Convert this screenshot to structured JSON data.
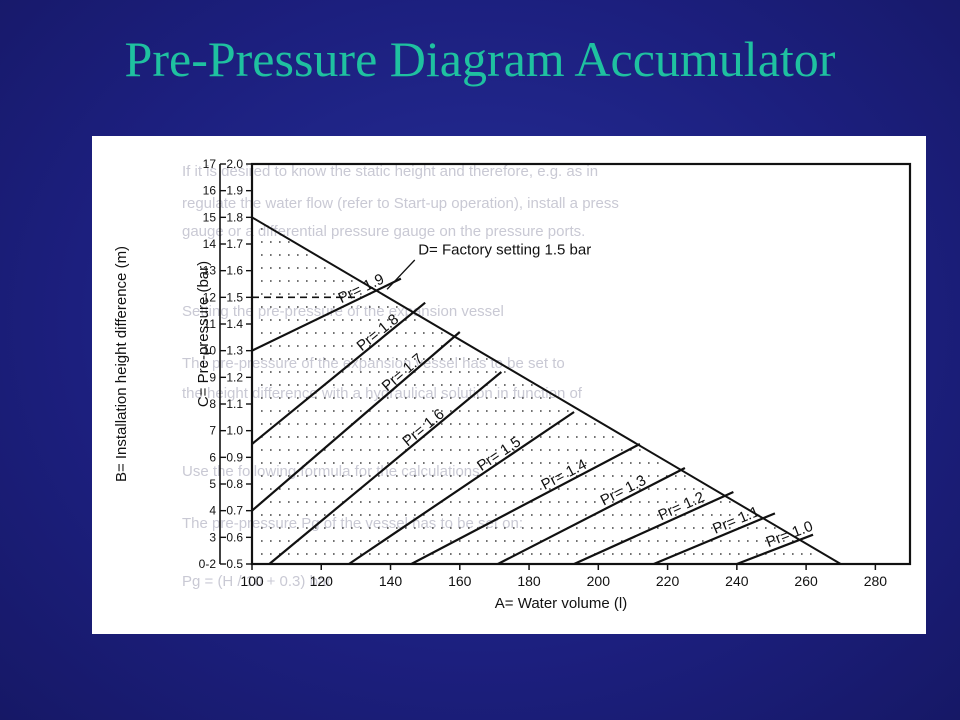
{
  "title": "Pre-Pressure Diagram Accumulator",
  "colors": {
    "background": "#1c1f7e",
    "title": "#1fc1a0",
    "panel": "#ffffff",
    "ink": "#111111"
  },
  "chart_data": {
    "type": "line",
    "xlabel": "A= Water volume (l)",
    "ylabel_left": "B= Installation height difference (m)",
    "ylabel_right": "C= Pre-pressure (bar)",
    "x_ticks": [
      "100",
      "120",
      "140",
      "160",
      "180",
      "200",
      "220",
      "240",
      "260",
      "280"
    ],
    "b_ticks": [
      "17",
      "16",
      "15",
      "14",
      "13",
      "12",
      "11",
      "10",
      "9",
      "8",
      "7",
      "6",
      "5",
      "4",
      "3",
      "0-2"
    ],
    "c_ticks": [
      "2.0",
      "1.9",
      "1.8",
      "1.7",
      "1.6",
      "1.5",
      "1.4",
      "1.3",
      "1.2",
      "1.1",
      "1.0",
      "0.9",
      "0.8",
      "0.7",
      "0.6",
      "0.5"
    ],
    "xlim": [
      100,
      290
    ],
    "ylim": [
      0.5,
      2.0
    ],
    "boundary": {
      "name": "",
      "x": [
        100,
        270
      ],
      "y": [
        1.8,
        0.5
      ]
    },
    "factory_setting": {
      "label": "D= Factory setting 1.5 bar",
      "y": 1.5
    },
    "series": [
      {
        "name": "Pr= 1.9",
        "x": [
          100,
          143
        ],
        "y": [
          1.3,
          1.57
        ]
      },
      {
        "name": "Pr= 1.8",
        "x": [
          100,
          150
        ],
        "y": [
          0.95,
          1.48
        ]
      },
      {
        "name": "Pr= 1.7",
        "x": [
          100,
          160
        ],
        "y": [
          0.7,
          1.37
        ]
      },
      {
        "name": "Pr= 1.6",
        "x": [
          105,
          172
        ],
        "y": [
          0.5,
          1.22
        ]
      },
      {
        "name": "Pr= 1.5",
        "x": [
          128,
          193
        ],
        "y": [
          0.5,
          1.07
        ]
      },
      {
        "name": "Pr= 1.4",
        "x": [
          146,
          212
        ],
        "y": [
          0.5,
          0.95
        ]
      },
      {
        "name": "Pr= 1.3",
        "x": [
          171,
          225
        ],
        "y": [
          0.5,
          0.86
        ]
      },
      {
        "name": "Pr= 1.2",
        "x": [
          193,
          239
        ],
        "y": [
          0.5,
          0.77
        ]
      },
      {
        "name": "Pr= 1.1",
        "x": [
          216,
          251
        ],
        "y": [
          0.5,
          0.69
        ]
      },
      {
        "name": "Pr= 1.0",
        "x": [
          240,
          262
        ],
        "y": [
          0.5,
          0.61
        ]
      }
    ],
    "background_text": [
      "If it is desired to know the static height and therefore, e.g. as in",
      "regulate the water flow (refer to Start-up operation), install a press",
      "gauge or a differential pressure gauge on the pressure ports.",
      "Setting the pre-pressure of the expansion vessel",
      "The pre-pressure of the expansion vessel has to be set to",
      "the height difference with a hydraulical solution in function of",
      "Use the following formula for the calculations:",
      "The pre-pressure Pg of the vessel has to be set on:",
      "Pg = (H / 10 + 0.3) bar"
    ]
  }
}
